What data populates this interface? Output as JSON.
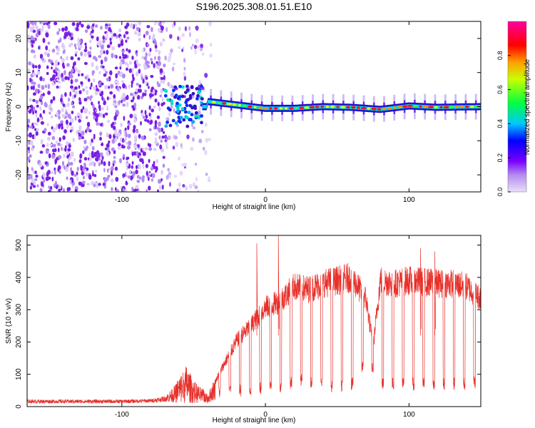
{
  "page_title": "S196.2025.308.01.51.E10",
  "chart_data": [
    {
      "type": "heatmap",
      "xlabel": "Height of straight line (km)",
      "ylabel": "Frequency (Hz)",
      "xlim": [
        -166,
        150
      ],
      "ylim": [
        -25,
        25
      ],
      "x_ticks": [
        -100,
        0,
        100
      ],
      "y_ticks": [
        -20,
        -10,
        0,
        10,
        20
      ],
      "colorbar": {
        "label": "Normalized spectral amplitude",
        "range": [
          0.0,
          1.0
        ],
        "ticks": [
          "0.0",
          "0.2",
          "0.4",
          "0.6",
          "0.8"
        ],
        "tick_values": [
          0.0,
          0.2,
          0.4,
          0.6,
          0.8
        ],
        "colormap": [
          "#d8c8f8",
          "#8a2be2",
          "#0000ff",
          "#00ffff",
          "#00ff00",
          "#ffff00",
          "#ff0000",
          "#ff00aa"
        ]
      },
      "noise_region_x": [
        -166,
        -38
      ],
      "signal_track": {
        "x": [
          -40,
          -20,
          0,
          20,
          40,
          60,
          80,
          100,
          120,
          150
        ],
        "frequency": [
          1.5,
          0.5,
          -0.5,
          -0.5,
          0,
          -0.2,
          -0.8,
          0.2,
          -0.2,
          0.0
        ]
      }
    },
    {
      "type": "line",
      "xlabel": "Height of straight line (km)",
      "ylabel": "SNR (10 * v/v)",
      "xlim": [
        -166,
        150
      ],
      "ylim": [
        0,
        530
      ],
      "x_ticks": [
        -100,
        0,
        100
      ],
      "y_ticks": [
        0,
        100,
        200,
        300,
        400,
        500
      ],
      "line_color": "#e8302a",
      "series": [
        {
          "name": "SNR",
          "x": [
            -166,
            -130,
            -100,
            -80,
            -70,
            -60,
            -55,
            -50,
            -45,
            -40,
            -30,
            -20,
            -10,
            0,
            10,
            20,
            30,
            40,
            50,
            60,
            70,
            75,
            80,
            90,
            100,
            110,
            120,
            130,
            140,
            150
          ],
          "envelope": [
            20,
            20,
            20,
            22,
            30,
            70,
            100,
            60,
            40,
            35,
            130,
            220,
            270,
            330,
            350,
            400,
            390,
            410,
            420,
            430,
            360,
            200,
            420,
            410,
            420,
            415,
            410,
            410,
            400,
            360
          ],
          "dips": [
            10,
            10,
            10,
            12,
            15,
            10,
            10,
            10,
            10,
            10,
            30,
            30,
            30,
            40,
            40,
            60,
            60,
            50,
            40,
            45,
            120,
            100,
            50,
            50,
            50,
            50,
            50,
            50,
            50,
            60
          ]
        }
      ],
      "peaks": [
        {
          "x": -6,
          "y": 505
        },
        {
          "x": 9,
          "y": 530
        },
        {
          "x": 108,
          "y": 490
        },
        {
          "x": 118,
          "y": 480
        }
      ]
    }
  ]
}
